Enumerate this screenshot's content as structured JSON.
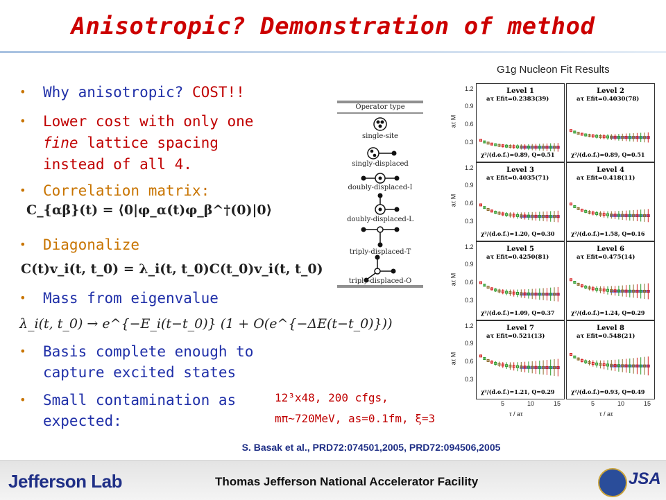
{
  "title": "Anisotropic? Demonstration of method",
  "bullets": {
    "b1_part1": "Why anisotropic?",
    "b1_part2": "COST!!",
    "b2_line1": "Lower cost with only one",
    "b2_line2_italic": "fine",
    "b2_line2_rest": " lattice spacing",
    "b2_line3": "instead of all 4.",
    "b3": "Correlation matrix:",
    "b4": "Diagonalize",
    "b5": "Mass from eigenvalue",
    "b6_line1": "Basis complete enough to",
    "b6_line2": "capture excited states",
    "b7_line1": "Small contamination as",
    "b7_line2": "expected:"
  },
  "equations": {
    "correlation": "C_{αβ}(t) = ⟨0|φ_α(t)φ_β^†(0)|0⟩",
    "diagonalize": "C(t)v_i(t, t_0) = λ_i(t, t_0)C(t_0)v_i(t, t_0)",
    "eigenvalue": "λ_i(t, t_0) → e^{−E_i(t−t_0)} (1 + O(e^{−ΔE(t−t_0)}))"
  },
  "operator_table": {
    "header": "Operator type",
    "types": [
      "single-site",
      "singly-displaced",
      "doubly-displaced-I",
      "doubly-displaced-L",
      "triply-displaced-T",
      "triply-displaced-O"
    ]
  },
  "figure": {
    "title": "G1g Nucleon Fit Results",
    "yaxis_label": "aτ M",
    "xaxis_label": "τ / aτ",
    "yticks": [
      "1.2",
      "0.9",
      "0.6",
      "0.3"
    ],
    "xticks": [
      "5",
      "10",
      "15"
    ],
    "panels": [
      {
        "level": "Level 1",
        "efit": "aτ Efit=0.2383(39)",
        "chi": "χ²/(d.o.f.)=0.89, Q=0.51",
        "E": 0.2383
      },
      {
        "level": "Level 2",
        "efit": "aτ Efit=0.4030(78)",
        "chi": "χ²/(d.o.f.)=0.89, Q=0.51",
        "E": 0.403
      },
      {
        "level": "Level 3",
        "efit": "aτ Efit=0.4035(71)",
        "chi": "χ²/(d.o.f.)=1.20, Q=0.30",
        "E": 0.4035
      },
      {
        "level": "Level 4",
        "efit": "aτ Efit=0.418(11)",
        "chi": "χ²/(d.o.f.)=1.58, Q=0.16",
        "E": 0.418
      },
      {
        "level": "Level 5",
        "efit": "aτ Efit=0.4250(81)",
        "chi": "χ²/(d.o.f.)=1.09, Q=0.37",
        "E": 0.425
      },
      {
        "level": "Level 6",
        "efit": "aτ Efit=0.475(14)",
        "chi": "χ²/(d.o.f.)=1.24, Q=0.29",
        "E": 0.475
      },
      {
        "level": "Level 7",
        "efit": "aτ Efit=0.521(13)",
        "chi": "χ²/(d.o.f.)=1.21, Q=0.29",
        "E": 0.521
      },
      {
        "level": "Level 8",
        "efit": "aτ Efit=0.548(21)",
        "chi": "χ²/(d.o.f.)=0.93, Q=0.49",
        "E": 0.548
      }
    ]
  },
  "params": {
    "line1": "12³x48, 200 cfgs,",
    "line2": "mπ~720MeV, as=0.1fm, ξ=3"
  },
  "citation": "S. Basak et al., PRD72:074501,2005,   PRD72:094506,2005",
  "footer": {
    "logo_text": "Jefferson Lab",
    "facility": "Thomas Jefferson National Accelerator Facility",
    "right_logo": "JSA"
  },
  "colors": {
    "title": "#cc0000",
    "bullet_blue": "#1f2fa8",
    "bullet_orange": "#c87400",
    "accent_red": "#c00000",
    "citation": "#1f2f86"
  }
}
